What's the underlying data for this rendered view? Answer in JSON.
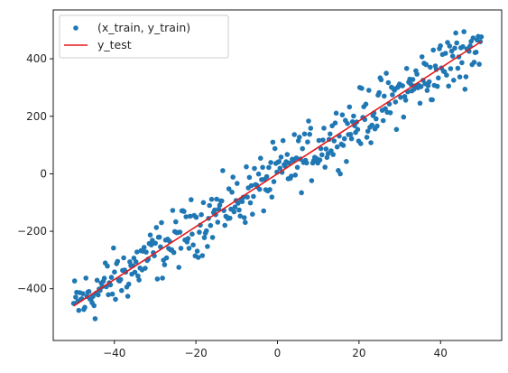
{
  "chart_data": {
    "type": "scatter",
    "title": "",
    "xlabel": "",
    "ylabel": "",
    "xlim": [
      -55,
      55
    ],
    "ylim": [
      -580,
      570
    ],
    "xticks": [
      -40,
      -20,
      0,
      20,
      40
    ],
    "yticks": [
      -400,
      -200,
      0,
      200,
      400
    ],
    "xtick_labels": [
      "−40",
      "−20",
      "0",
      "20",
      "40"
    ],
    "ytick_labels": [
      "−400",
      "−200",
      "0",
      "200",
      "400"
    ],
    "grid": false,
    "legend_position": "top-left",
    "series": [
      {
        "name": "(x_train, y_train)",
        "kind": "scatter",
        "color": "#1f77b4",
        "x_range": [
          -50,
          50
        ],
        "n_points": 400,
        "slope": 9.2,
        "intercept": 0,
        "noise": 75
      },
      {
        "name": "y_test",
        "kind": "line",
        "color": "#e41a1c",
        "x": [
          -50,
          50
        ],
        "y": [
          -460,
          460
        ]
      }
    ]
  }
}
